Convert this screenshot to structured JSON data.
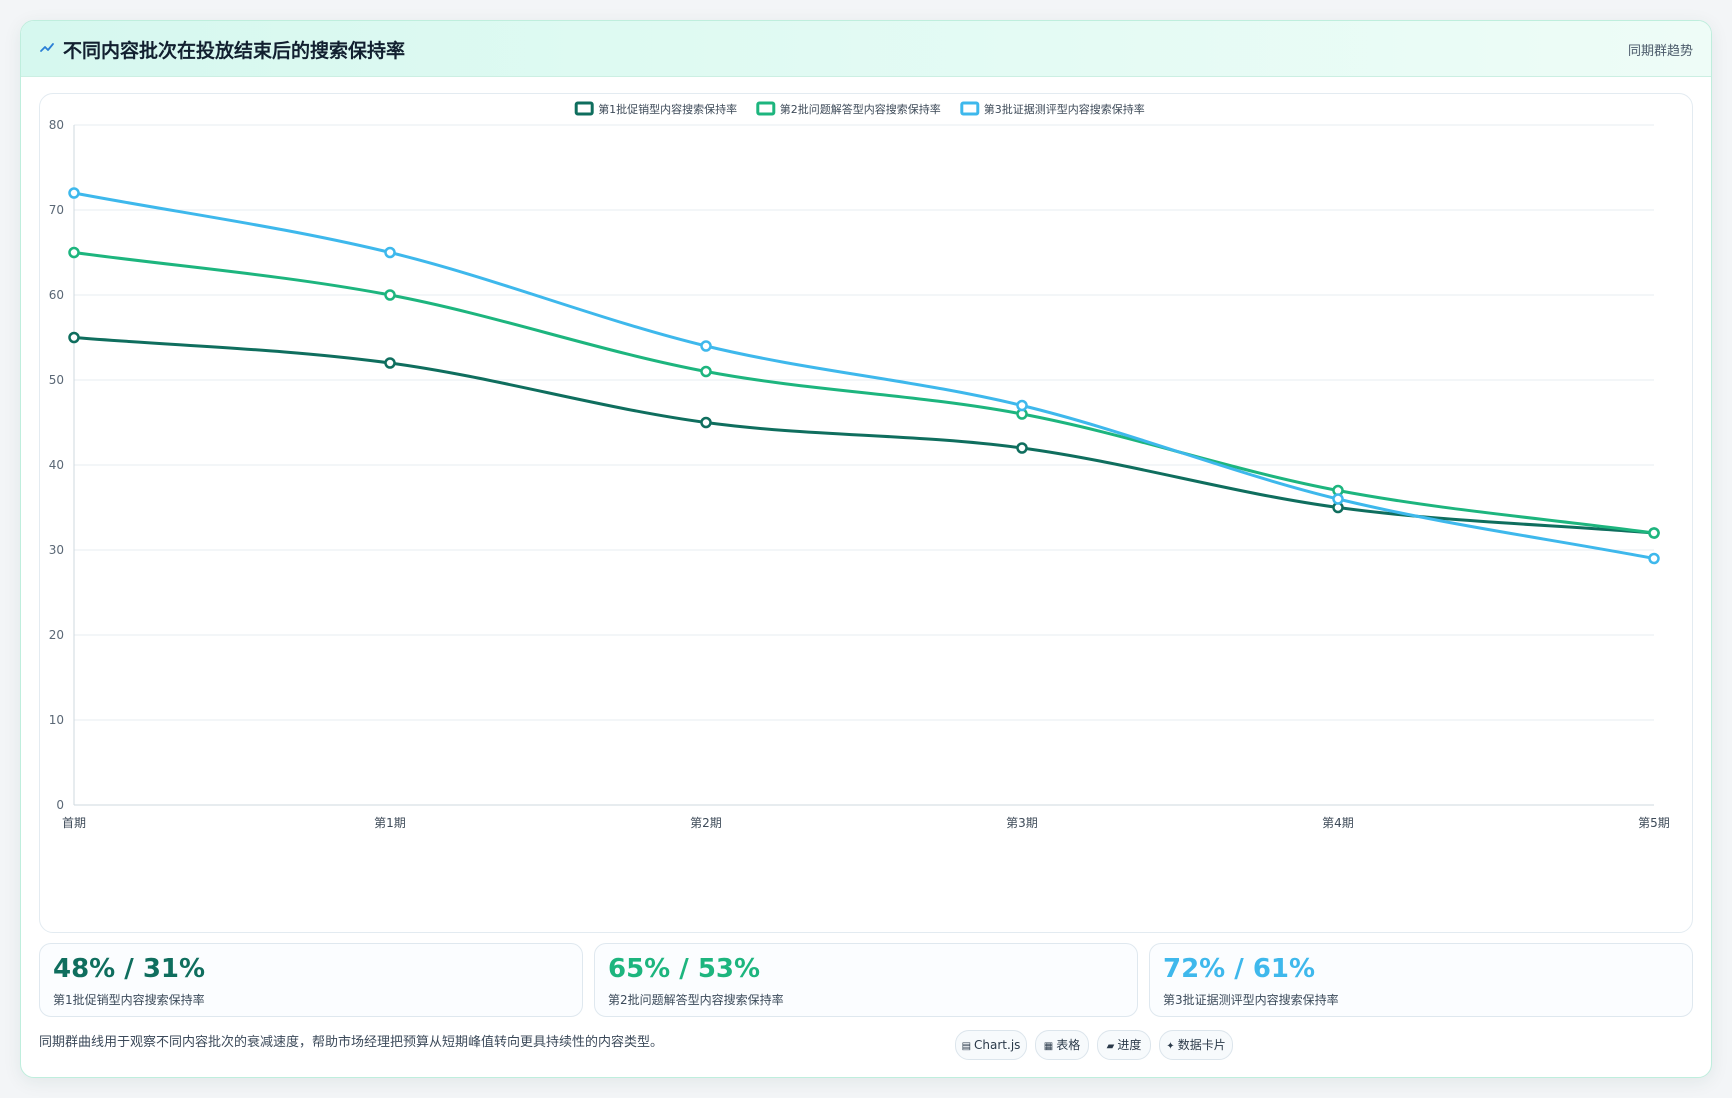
{
  "header": {
    "title": "不同内容批次在投放结束后的搜索保持率",
    "tag": "同期群趋势",
    "icon": "trend-icon"
  },
  "chart_data": {
    "type": "line",
    "title": "",
    "xlabel": "",
    "ylabel": "",
    "categories": [
      "首期",
      "第1期",
      "第2期",
      "第3期",
      "第4期",
      "第5期"
    ],
    "ylim": [
      0,
      80
    ],
    "yticks": [
      0,
      10,
      20,
      30,
      40,
      50,
      60,
      70,
      80
    ],
    "grid": true,
    "legend_position": "top-center",
    "series": [
      {
        "name": "第1批促销型内容搜索保持率",
        "color": "#0f6e5e",
        "values": [
          55,
          52,
          45,
          42,
          35,
          32
        ]
      },
      {
        "name": "第2批问题解答型内容搜索保持率",
        "color": "#1db57e",
        "values": [
          65,
          60,
          51,
          46,
          37,
          32
        ]
      },
      {
        "name": "第3批证据测评型内容搜索保持率",
        "color": "#3eb8ec",
        "values": [
          72,
          65,
          54,
          47,
          36,
          29
        ]
      }
    ]
  },
  "stats": [
    {
      "value": "48% / 31%",
      "label": "第1批促销型内容搜索保持率",
      "color": "#0f6e5e"
    },
    {
      "value": "65% / 53%",
      "label": "第2批问题解答型内容搜索保持率",
      "color": "#1db57e"
    },
    {
      "value": "72% / 61%",
      "label": "第3批证据测评型内容搜索保持率",
      "color": "#3eb8ec"
    }
  ],
  "footnote": "同期群曲线用于观察不同内容批次的衰减速度，帮助市场经理把预算从短期峰值转向更具持续性的内容类型。",
  "chips": [
    {
      "icon": "▤",
      "label": "Chart.js"
    },
    {
      "icon": "▦",
      "label": "表格"
    },
    {
      "icon": "▰",
      "label": "进度"
    },
    {
      "icon": "✦",
      "label": "数据卡片"
    }
  ]
}
